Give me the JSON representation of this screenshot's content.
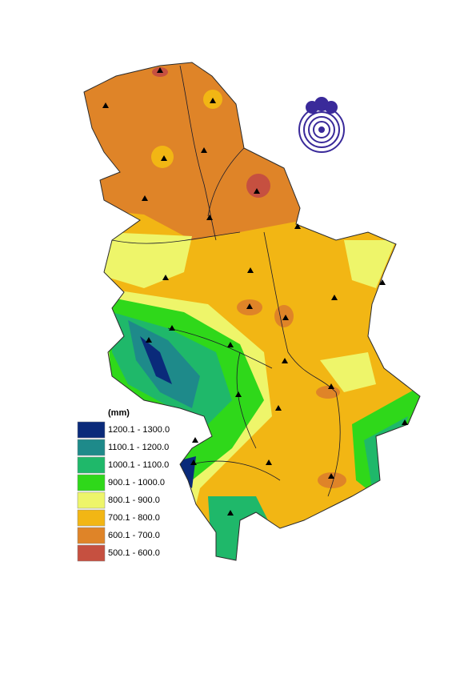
{
  "legend": {
    "title": "(mm)",
    "items": [
      {
        "label": "1200.1 - 1300.0",
        "color": "#0a2a7a"
      },
      {
        "label": "1100.1 - 1200.0",
        "color": "#1e8a8a"
      },
      {
        "label": "1000.1 - 1100.0",
        "color": "#1fb86a"
      },
      {
        "label": "900.1 - 1000.0",
        "color": "#2fd81a"
      },
      {
        "label": "800.1 - 900.0",
        "color": "#eef56a"
      },
      {
        "label": "700.1 - 800.0",
        "color": "#f2b614"
      },
      {
        "label": "600.1 - 700.0",
        "color": "#df8428"
      },
      {
        "label": "500.1 - 600.0",
        "color": "#c65040"
      }
    ]
  }
}
